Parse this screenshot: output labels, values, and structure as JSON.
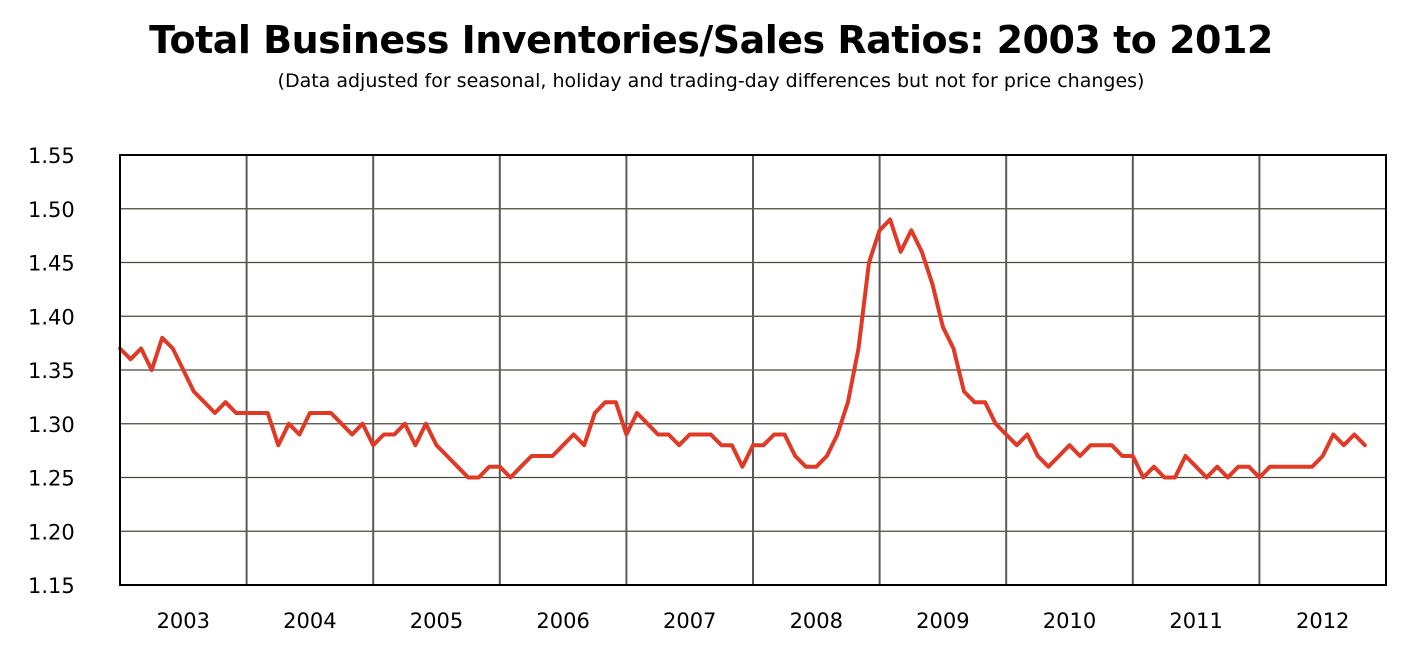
{
  "chart_data": {
    "type": "line",
    "title": "Total Business Inventories/Sales Ratios: 2003 to 2012",
    "subtitle": "(Data adjusted for seasonal, holiday and trading-day differences but not for price changes)",
    "xlabel": "",
    "ylabel": "",
    "ylim": [
      1.15,
      1.55
    ],
    "yticks": [
      "1.15",
      "1.20",
      "1.25",
      "1.30",
      "1.35",
      "1.40",
      "1.45",
      "1.50",
      "1.55"
    ],
    "year_labels": [
      "2003",
      "2004",
      "2005",
      "2006",
      "2007",
      "2008",
      "2009",
      "2010",
      "2011",
      "2012"
    ],
    "x_start_year": 2003,
    "months_per_year": 12,
    "grid": true,
    "line_color": "#e03a26",
    "series": [
      {
        "name": "Inventories/Sales Ratio",
        "values": [
          1.37,
          1.36,
          1.37,
          1.35,
          1.38,
          1.37,
          1.35,
          1.33,
          1.32,
          1.31,
          1.32,
          1.31,
          1.31,
          1.31,
          1.31,
          1.28,
          1.3,
          1.29,
          1.31,
          1.31,
          1.31,
          1.3,
          1.29,
          1.3,
          1.28,
          1.29,
          1.29,
          1.3,
          1.28,
          1.3,
          1.28,
          1.27,
          1.26,
          1.25,
          1.25,
          1.26,
          1.26,
          1.25,
          1.26,
          1.27,
          1.27,
          1.27,
          1.28,
          1.29,
          1.28,
          1.31,
          1.32,
          1.32,
          1.29,
          1.31,
          1.3,
          1.29,
          1.29,
          1.28,
          1.29,
          1.29,
          1.29,
          1.28,
          1.28,
          1.26,
          1.28,
          1.28,
          1.29,
          1.29,
          1.27,
          1.26,
          1.26,
          1.27,
          1.29,
          1.32,
          1.37,
          1.45,
          1.48,
          1.49,
          1.46,
          1.48,
          1.46,
          1.43,
          1.39,
          1.37,
          1.33,
          1.32,
          1.32,
          1.3,
          1.29,
          1.28,
          1.29,
          1.27,
          1.26,
          1.27,
          1.28,
          1.27,
          1.28,
          1.28,
          1.28,
          1.27,
          1.27,
          1.25,
          1.26,
          1.25,
          1.25,
          1.27,
          1.26,
          1.25,
          1.26,
          1.25,
          1.26,
          1.26,
          1.25,
          1.26,
          1.26,
          1.26,
          1.26,
          1.26,
          1.27,
          1.29,
          1.28,
          1.29,
          1.28
        ]
      }
    ]
  }
}
